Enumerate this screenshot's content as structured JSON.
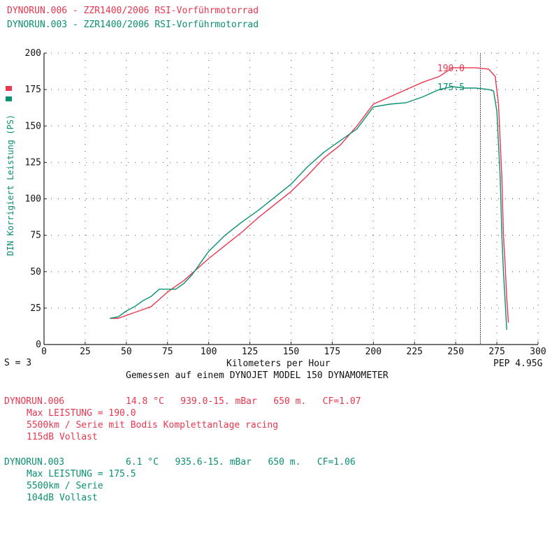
{
  "header": {
    "run1": "DYNORUN.006 - ZZR1400/2006 RSI-Vorführmotorrad",
    "run2": "DYNORUN.003 - ZZR1400/2006 RSI-Vorführmotorrad"
  },
  "colors": {
    "run1": "#e8364e",
    "run2": "#0a8f73"
  },
  "chart_data": {
    "type": "line",
    "ylabel": "DIN Korrigiert Leistung (PS)",
    "xlabel": "Kilometers per Hour",
    "subtitle": "Gemessen auf einem DYNOJET MODEL 150 DYNAMOMETER",
    "smoothing": "S = 3",
    "pep": "PEP 4.95G",
    "xlim": [
      0,
      300
    ],
    "ylim": [
      0,
      200
    ],
    "xticks": [
      0,
      25,
      50,
      75,
      100,
      125,
      150,
      175,
      200,
      225,
      250,
      275,
      300
    ],
    "yticks": [
      0,
      25,
      50,
      75,
      100,
      125,
      150,
      175,
      200
    ],
    "grid": true,
    "cursor_x": 265,
    "series": [
      {
        "name": "DYNORUN.006",
        "peak_label": "190.0",
        "points": [
          [
            40,
            18
          ],
          [
            45,
            18
          ],
          [
            50,
            20
          ],
          [
            55,
            22
          ],
          [
            60,
            24
          ],
          [
            65,
            26
          ],
          [
            70,
            31
          ],
          [
            75,
            36
          ],
          [
            80,
            40
          ],
          [
            85,
            44
          ],
          [
            90,
            49
          ],
          [
            95,
            54
          ],
          [
            100,
            59
          ],
          [
            110,
            68
          ],
          [
            120,
            77
          ],
          [
            130,
            87
          ],
          [
            140,
            96
          ],
          [
            150,
            105
          ],
          [
            160,
            116
          ],
          [
            170,
            128
          ],
          [
            180,
            137
          ],
          [
            190,
            150
          ],
          [
            200,
            165
          ],
          [
            210,
            170
          ],
          [
            220,
            175
          ],
          [
            230,
            180
          ],
          [
            240,
            184
          ],
          [
            248,
            190
          ],
          [
            255,
            190
          ],
          [
            262,
            190
          ],
          [
            270,
            189
          ],
          [
            274,
            184
          ],
          [
            276,
            165
          ],
          [
            278,
            115
          ],
          [
            279,
            75
          ],
          [
            280,
            55
          ],
          [
            281,
            32
          ],
          [
            282,
            15
          ]
        ]
      },
      {
        "name": "DYNORUN.003",
        "peak_label": "175.5",
        "points": [
          [
            40,
            18
          ],
          [
            45,
            19
          ],
          [
            50,
            23
          ],
          [
            55,
            26
          ],
          [
            60,
            30
          ],
          [
            65,
            33
          ],
          [
            70,
            38
          ],
          [
            75,
            38
          ],
          [
            80,
            38
          ],
          [
            85,
            42
          ],
          [
            90,
            48
          ],
          [
            95,
            56
          ],
          [
            100,
            64
          ],
          [
            110,
            75
          ],
          [
            120,
            84
          ],
          [
            130,
            92
          ],
          [
            140,
            101
          ],
          [
            150,
            110
          ],
          [
            160,
            122
          ],
          [
            170,
            132
          ],
          [
            180,
            140
          ],
          [
            190,
            148
          ],
          [
            200,
            163
          ],
          [
            210,
            165
          ],
          [
            220,
            166
          ],
          [
            230,
            170
          ],
          [
            240,
            175
          ],
          [
            248,
            177
          ],
          [
            255,
            176
          ],
          [
            262,
            176
          ],
          [
            270,
            175
          ],
          [
            273,
            174
          ],
          [
            275,
            160
          ],
          [
            277,
            115
          ],
          [
            278,
            75
          ],
          [
            279,
            50
          ],
          [
            280,
            30
          ],
          [
            281,
            10
          ]
        ]
      }
    ]
  },
  "details": [
    {
      "id": "DYNORUN.006",
      "conditions": "14.8 °C   939.0-15. mBar   650 m.   CF=1.07",
      "max": "Max LEISTUNG = 190.0",
      "desc": "5500km / Serie mit Bodis Komplettanlage racing",
      "sound": "115dB Vollast"
    },
    {
      "id": "DYNORUN.003",
      "conditions": "6.1 °C   935.6-15. mBar   650 m.   CF=1.06",
      "max": "Max LEISTUNG = 175.5",
      "desc": "5500km / Serie",
      "sound": "104dB Vollast"
    }
  ]
}
